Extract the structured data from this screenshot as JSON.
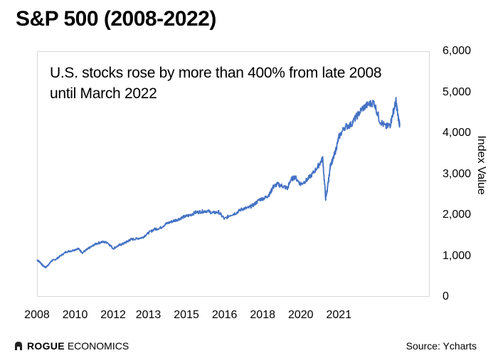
{
  "brand": {
    "name_bold": "ROGUE",
    "name_rest": "ECONOMICS",
    "logo_icon": "rogue-helmet-icon"
  },
  "source": "Source: Ycharts",
  "chart_data": {
    "type": "line",
    "title": "S&P 500 (2008-2022)",
    "annotation": "U.S. stocks rose by more than 400% from late 2008 until March 2022",
    "ylabel": "Index Value",
    "xlabel": "",
    "ylim": [
      0,
      6000
    ],
    "yticks": [
      "0",
      "1,000",
      "2,000",
      "3,000",
      "4,000",
      "5,000",
      "6,000"
    ],
    "ytick_values": [
      0,
      1000,
      2000,
      3000,
      4000,
      5000,
      6000
    ],
    "xtick_labels": [
      "2008",
      "2010",
      "2012",
      "2013",
      "2015",
      "2016",
      "2018",
      "2020",
      "2021"
    ],
    "xtick_values": [
      2008.8,
      2010.1,
      2011.4,
      2012.6,
      2013.9,
      2015.2,
      2016.5,
      2017.8,
      2019.1
    ],
    "xlim": [
      2008.8,
      2022.2
    ],
    "grid": false,
    "line_color": "#4472c4",
    "series": [
      {
        "x": [
          2008.8,
          2008.9,
          2009.0,
          2009.1,
          2009.2,
          2009.3,
          2009.45,
          2009.6,
          2009.8,
          2010.0,
          2010.2,
          2010.35,
          2010.5,
          2010.6,
          2010.8,
          2011.0,
          2011.2,
          2011.4,
          2011.6,
          2011.75,
          2011.9,
          2012.0,
          2012.2,
          2012.4,
          2012.6,
          2012.8,
          2013.0,
          2013.2,
          2013.4,
          2013.6,
          2013.8,
          2014.0,
          2014.2,
          2014.4,
          2014.6,
          2014.8,
          2015.0,
          2015.2,
          2015.4,
          2015.6,
          2015.8,
          2016.0,
          2016.2,
          2016.4,
          2016.6,
          2016.75,
          2016.85,
          2017.0,
          2017.2,
          2017.35,
          2017.45,
          2017.6,
          2017.8,
          2018.0,
          2018.2,
          2018.4,
          2018.55,
          2018.65,
          2018.7,
          2018.75,
          2018.82,
          2018.9,
          2019.0,
          2019.1,
          2019.3,
          2019.5,
          2019.7,
          2019.9,
          2020.1,
          2020.3,
          2020.5,
          2020.7,
          2020.85,
          2020.95,
          2021.05,
          2021.12,
          2021.18
        ],
        "values": [
          900,
          850,
          760,
          720,
          790,
          880,
          920,
          1000,
          1100,
          1130,
          1180,
          1080,
          1150,
          1200,
          1290,
          1340,
          1330,
          1180,
          1260,
          1300,
          1360,
          1400,
          1420,
          1450,
          1560,
          1650,
          1680,
          1780,
          1840,
          1890,
          1950,
          1990,
          2060,
          2080,
          2100,
          2050,
          2070,
          1900,
          2000,
          2050,
          2150,
          2170,
          2250,
          2380,
          2420,
          2520,
          2680,
          2750,
          2700,
          2650,
          2850,
          2930,
          2750,
          2850,
          3000,
          3200,
          3380,
          2400,
          2600,
          2850,
          3250,
          3350,
          3600,
          3900,
          4150,
          4200,
          4400,
          4600,
          4700,
          4750,
          4300,
          4150,
          4200,
          4500,
          4780,
          4400,
          4200
        ]
      }
    ]
  }
}
